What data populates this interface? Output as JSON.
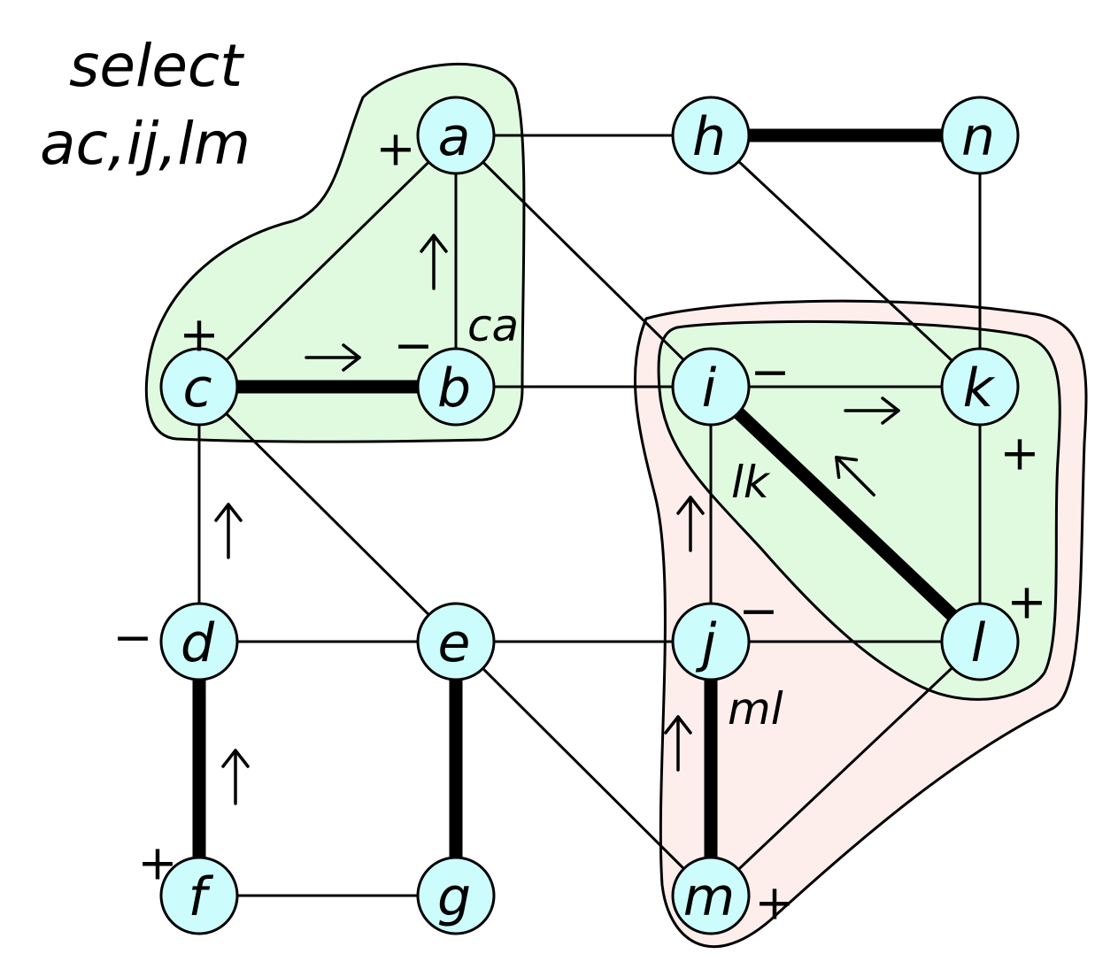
{
  "title": [
    "select",
    "ac,ij,lm"
  ],
  "colors": {
    "node_fill": "#ccfcfc",
    "group_green": "#e0fae0",
    "group_pink": "#fdeeec",
    "stroke": "#000000"
  },
  "nodes": [
    {
      "id": "a",
      "label": "a"
    },
    {
      "id": "h",
      "label": "h"
    },
    {
      "id": "n",
      "label": "n"
    },
    {
      "id": "c",
      "label": "c"
    },
    {
      "id": "b",
      "label": "b"
    },
    {
      "id": "i",
      "label": "i"
    },
    {
      "id": "k",
      "label": "k"
    },
    {
      "id": "d",
      "label": "d"
    },
    {
      "id": "e",
      "label": "e"
    },
    {
      "id": "j",
      "label": "j"
    },
    {
      "id": "l",
      "label": "l"
    },
    {
      "id": "f",
      "label": "f"
    },
    {
      "id": "g",
      "label": "g"
    },
    {
      "id": "m",
      "label": "m"
    }
  ],
  "edges": [
    {
      "from": "a",
      "to": "h",
      "matched": false
    },
    {
      "from": "h",
      "to": "n",
      "matched": true
    },
    {
      "from": "a",
      "to": "c",
      "matched": false
    },
    {
      "from": "a",
      "to": "b",
      "matched": false
    },
    {
      "from": "a",
      "to": "i",
      "matched": false
    },
    {
      "from": "h",
      "to": "k",
      "matched": false
    },
    {
      "from": "n",
      "to": "k",
      "matched": false
    },
    {
      "from": "c",
      "to": "b",
      "matched": true
    },
    {
      "from": "b",
      "to": "i",
      "matched": false
    },
    {
      "from": "i",
      "to": "k",
      "matched": false
    },
    {
      "from": "c",
      "to": "d",
      "matched": false
    },
    {
      "from": "c",
      "to": "e",
      "matched": false
    },
    {
      "from": "i",
      "to": "j",
      "matched": false
    },
    {
      "from": "i",
      "to": "l",
      "matched": true
    },
    {
      "from": "k",
      "to": "l",
      "matched": false
    },
    {
      "from": "d",
      "to": "e",
      "matched": false
    },
    {
      "from": "e",
      "to": "j",
      "matched": false
    },
    {
      "from": "j",
      "to": "l",
      "matched": false
    },
    {
      "from": "d",
      "to": "f",
      "matched": true
    },
    {
      "from": "e",
      "to": "g",
      "matched": true
    },
    {
      "from": "e",
      "to": "m",
      "matched": false
    },
    {
      "from": "j",
      "to": "m",
      "matched": true
    },
    {
      "from": "l",
      "to": "m",
      "matched": false
    },
    {
      "from": "f",
      "to": "g",
      "matched": false
    }
  ],
  "signs": [
    {
      "node": "a",
      "sign": "+"
    },
    {
      "node": "c",
      "sign": "+"
    },
    {
      "node": "b",
      "sign": "−"
    },
    {
      "node": "i",
      "sign": "−"
    },
    {
      "node": "k",
      "sign": "+"
    },
    {
      "node": "d",
      "sign": "−"
    },
    {
      "node": "j",
      "sign": "−"
    },
    {
      "node": "l",
      "sign": "+"
    },
    {
      "node": "f",
      "sign": "+"
    },
    {
      "node": "m",
      "sign": "+"
    }
  ],
  "edge_labels": [
    {
      "id": "ca",
      "text": "ca"
    },
    {
      "id": "lk",
      "text": "lk"
    },
    {
      "id": "ml",
      "text": "ml"
    }
  ],
  "arrows": [
    {
      "id": "b-to-a",
      "direction": "up"
    },
    {
      "id": "c-to-b",
      "direction": "right"
    },
    {
      "id": "d-to-c",
      "direction": "up"
    },
    {
      "id": "f-to-d",
      "direction": "up"
    },
    {
      "id": "i-to-k",
      "direction": "right"
    },
    {
      "id": "l-to-i",
      "direction": "up-left"
    },
    {
      "id": "j-to-i",
      "direction": "up"
    },
    {
      "id": "m-to-j",
      "direction": "up"
    }
  ]
}
